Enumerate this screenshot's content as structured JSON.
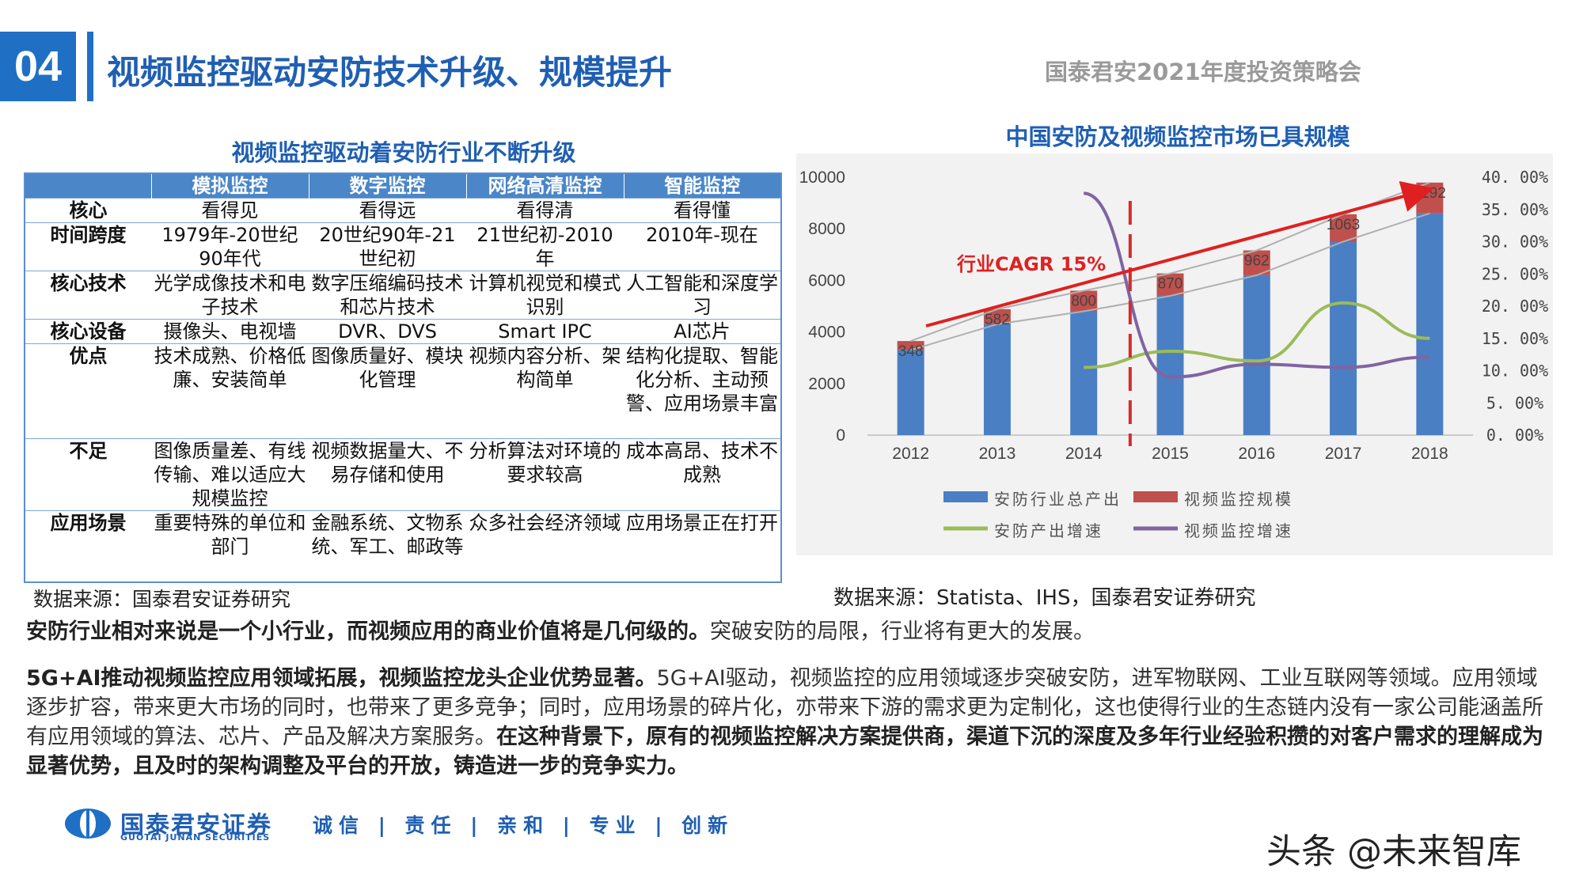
{
  "header": {
    "section_number": "04",
    "title": "视频监控驱动安防技术升级、规模提升",
    "event": "国泰君安2021年度投资策略会"
  },
  "table": {
    "title": "视频监控驱动着安防行业不断升级",
    "columns": [
      "",
      "模拟监控",
      "数字监控",
      "网络高清监控",
      "智能监控"
    ],
    "rows": [
      {
        "label": "核心",
        "cells": [
          "看得见",
          "看得远",
          "看得清",
          "看得懂"
        ]
      },
      {
        "label": "时间跨度",
        "cells": [
          "1979年-20世纪90年代",
          "20世纪90年-21世纪初",
          "21世纪初-2010年",
          "2010年-现在"
        ]
      },
      {
        "label": "核心技术",
        "cells": [
          "光学成像技术和电子技术",
          "数字压缩编码技术和芯片技术",
          "计算机视觉和模式识别",
          "人工智能和深度学习"
        ]
      },
      {
        "label": "核心设备",
        "cells": [
          "摄像头、电视墙",
          "DVR、DVS",
          "Smart IPC",
          "AI芯片"
        ]
      },
      {
        "label": "优点",
        "cells": [
          "技术成熟、价格低廉、安装简单",
          "图像质量好、模块化管理",
          "视频内容分析、架构简单",
          "结构化提取、智能化分析、主动预警、应用场景丰富"
        ]
      },
      {
        "label": "不足",
        "cells": [
          "图像质量差、有线传输、难以适应大规模监控",
          "视频数据量大、不易存储和使用",
          "分析算法对环境的要求较高",
          "成本高昂、技术不成熟"
        ]
      },
      {
        "label": "应用场景",
        "cells": [
          "重要特殊的单位和部门",
          "金融系统、文物系统、军工、邮政等",
          "众多社会经济领域",
          "应用场景正在打开"
        ]
      }
    ],
    "source": "数据来源：国泰君安证券研究"
  },
  "chart_title": "中国安防及视频监控市场已具规模",
  "chart_data": {
    "type": "bar",
    "title": "中国安防及视频监控市场已具规模",
    "categories": [
      "2012",
      "2013",
      "2014",
      "2015",
      "2016",
      "2017",
      "2018"
    ],
    "series": [
      {
        "name": "安防行业总产出",
        "type": "bar",
        "axis": "left",
        "color": "#4a7fc4",
        "values": [
          3300,
          4300,
          4800,
          5400,
          6200,
          7500,
          8600
        ]
      },
      {
        "name": "视频监控规模",
        "type": "bar",
        "axis": "left",
        "color": "#c0504d",
        "values": [
          348,
          582,
          800,
          870,
          962,
          1063,
          1192
        ]
      },
      {
        "name": "安防产出增速",
        "type": "line",
        "axis": "right",
        "color": "#9bbb59",
        "values": [
          null,
          null,
          0.105,
          0.13,
          0.115,
          0.205,
          0.15
        ]
      },
      {
        "name": "视频监控增速",
        "type": "line",
        "axis": "right",
        "color": "#8064a2",
        "values": [
          null,
          null,
          0.375,
          0.09,
          0.11,
          0.105,
          0.121
        ]
      }
    ],
    "y_left": {
      "range": [
        0,
        10000
      ],
      "ticks": [
        "10000",
        "8000",
        "6000",
        "4000",
        "2000",
        "0"
      ]
    },
    "y_right": {
      "range": [
        0,
        0.4
      ],
      "ticks": [
        "40. 00%",
        "35. 00%",
        "30. 00%",
        "25. 00%",
        "20. 00%",
        "15. 00%",
        "10. 00%",
        "5. 00%",
        "0. 00%"
      ]
    },
    "data_labels": [
      "348",
      "582",
      "800",
      "870",
      "962",
      "1063",
      "1192"
    ],
    "annotation": "行业CAGR 15%",
    "legend_position": "bottom",
    "grid": false
  },
  "chart_source": "数据来源：Statista、IHS，国泰君安证券研究",
  "paragraphs": {
    "p1_bold": "安防行业相对来说是一个小行业，而视频应用的商业价值将是几何级的。",
    "p1_rest": "突破安防的局限，行业将有更大的发展。",
    "p2_bold": "5G+AI推动视频监控应用领域拓展，视频监控龙头企业优势显著。",
    "p2_mid": "5G+AI驱动，视频监控的应用领域逐步突破安防，进军物联网、工业互联网等领域。应用领域逐步扩容，带来更大市场的同时，也带来了更多竞争；同时，应用场景的碎片化，亦带来下游的需求更为定制化，这也使得行业的生态链内没有一家公司能涵盖所有应用领域的算法、芯片、产品及解决方案服务。",
    "p2_bold2": "在这种背景下，原有的视频监控解决方案提供商，渠道下沉的深度及多年行业经验积攒的对客户需求的理解成为显著优势，且及时的架构调整及平台的开放，铸造进一步的竞争实力。"
  },
  "footer": {
    "company_cn": "国泰君安证券",
    "company_en": "GUOTAI JUNAN SECURITIES",
    "slogan": "诚信 | 责任 | 亲和 | 专业 | 创新",
    "watermark": "头条 @未来智库"
  },
  "colors": {
    "brand_blue": "#1f6fc4",
    "title_blue": "#1f5fb3",
    "table_header": "#4a86c8",
    "trend_arrow": "#e02020"
  }
}
